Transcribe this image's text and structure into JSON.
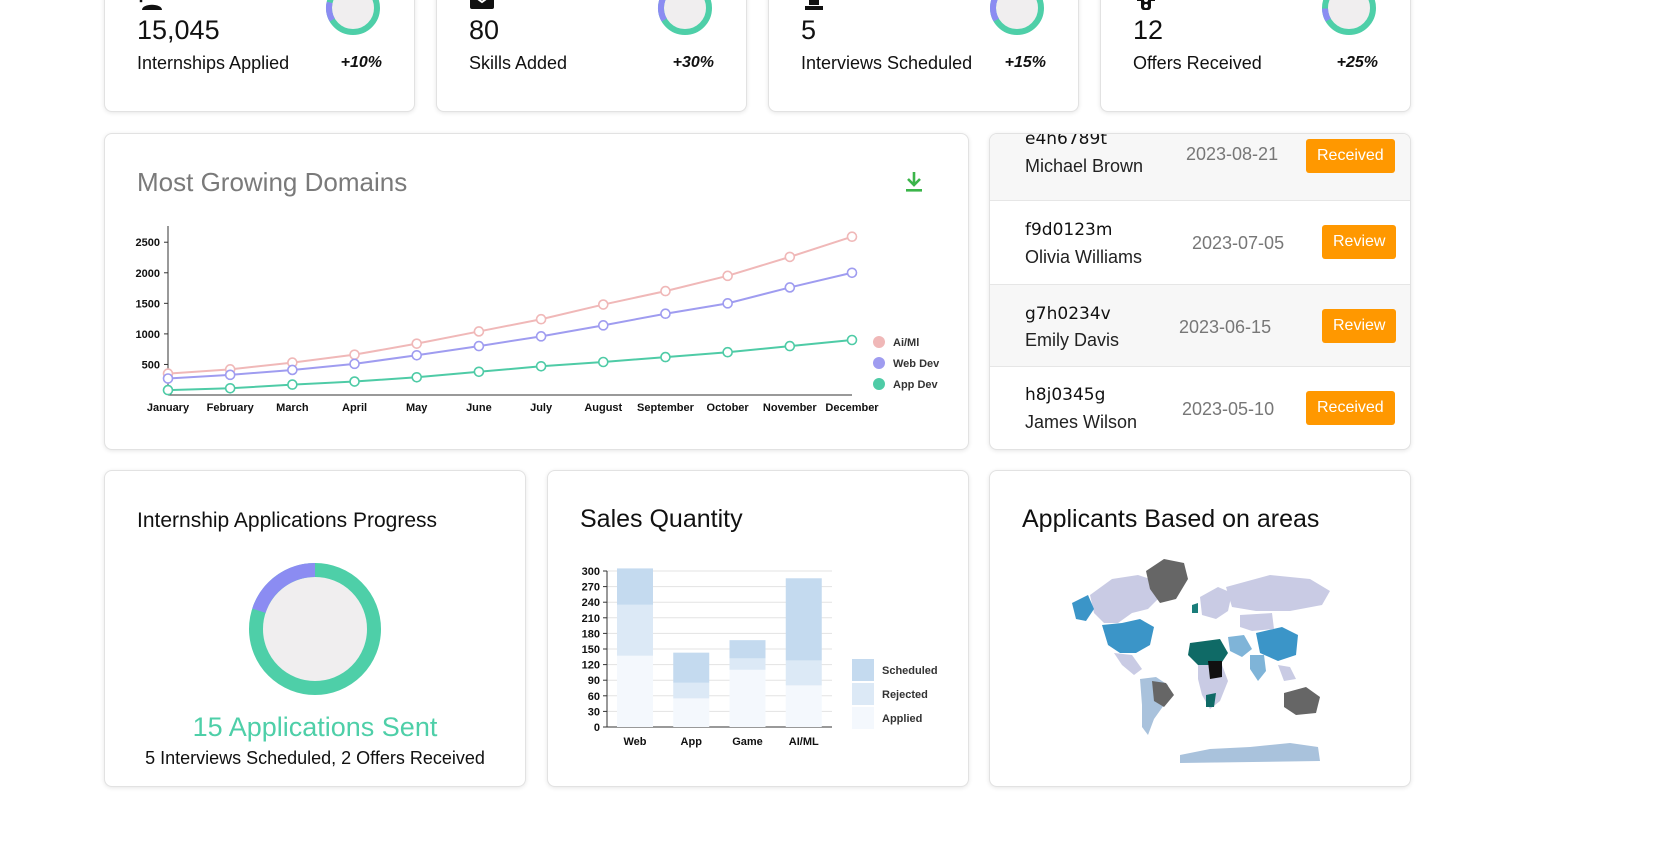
{
  "stats": [
    {
      "icon": "add-person-icon",
      "value": "15,045",
      "label": "Internships Applied",
      "pct": "+10%",
      "ring_fraction": 0.12
    },
    {
      "icon": "mail-icon",
      "value": "80",
      "label": "Skills Added",
      "pct": "+30%",
      "ring_fraction": 0.35
    },
    {
      "icon": "chess-icon",
      "value": "5",
      "label": "Interviews Scheduled",
      "pct": "+15%",
      "ring_fraction": 0.18
    },
    {
      "icon": "traffic-light-icon",
      "value": "12",
      "label": "Offers Received",
      "pct": "+25%",
      "ring_fraction": 0.08
    }
  ],
  "domains": {
    "title": "Most Growing Domains",
    "download_icon": "download-icon"
  },
  "applications": [
    {
      "id": "e4h6789t",
      "name": "Michael Brown",
      "date": "2023-08-21",
      "status": "Received"
    },
    {
      "id": "f9d0123m",
      "name": "Olivia Williams",
      "date": "2023-07-05",
      "status": "Review"
    },
    {
      "id": "g7h0234v",
      "name": "Emily Davis",
      "date": "2023-06-15",
      "status": "Review"
    },
    {
      "id": "h8j0345g",
      "name": "James Wilson",
      "date": "2023-05-10",
      "status": "Received"
    }
  ],
  "progress": {
    "title": "Internship Applications Progress",
    "headline": "15 Applications Sent",
    "subline": "5 Interviews Scheduled, 2 Offers Received",
    "ring_fraction": 0.2
  },
  "sales": {
    "title": "Sales Quantity"
  },
  "map": {
    "title": "Applicants Based on areas"
  },
  "colors": {
    "aiml": "#f0b8b8",
    "webdev": "#9f9cf0",
    "appdev": "#4ecba6",
    "ring_primary": "#4ecfa8",
    "ring_secondary": "#8b8cf2",
    "ring_bg": "#f0eeef",
    "badge": "#ff9800",
    "headline": "#4ecfa8",
    "download": "#3bb54a"
  },
  "chart_data": [
    {
      "type": "line",
      "x": [
        "January",
        "February",
        "March",
        "April",
        "May",
        "June",
        "July",
        "August",
        "September",
        "October",
        "November",
        "December"
      ],
      "series": [
        {
          "name": "Ai/Ml",
          "values": [
            350,
            420,
            530,
            660,
            840,
            1040,
            1240,
            1480,
            1700,
            1950,
            2260,
            2590
          ]
        },
        {
          "name": "Web Dev",
          "values": [
            270,
            330,
            410,
            510,
            650,
            800,
            960,
            1140,
            1330,
            1500,
            1760,
            2000
          ]
        },
        {
          "name": "App Dev",
          "values": [
            80,
            110,
            170,
            220,
            290,
            380,
            470,
            540,
            620,
            700,
            800,
            900
          ]
        }
      ],
      "yticks": [
        500,
        1000,
        1500,
        2000,
        2500
      ],
      "ylim": [
        0,
        2700
      ],
      "legend": "right"
    },
    {
      "type": "bar",
      "stacked": true,
      "categories": [
        "Web",
        "App",
        "Game",
        "AI/ML"
      ],
      "series": [
        {
          "name": "Applied",
          "values": [
            137,
            55,
            110,
            80
          ]
        },
        {
          "name": "Rejected",
          "values": [
            98,
            30,
            22,
            48
          ]
        },
        {
          "name": "Scheduled",
          "values": [
            70,
            58,
            35,
            158
          ]
        }
      ],
      "yticks": [
        0,
        30,
        60,
        90,
        120,
        150,
        180,
        210,
        240,
        270,
        300
      ],
      "ylim": [
        0,
        300
      ],
      "legend": "right"
    }
  ]
}
